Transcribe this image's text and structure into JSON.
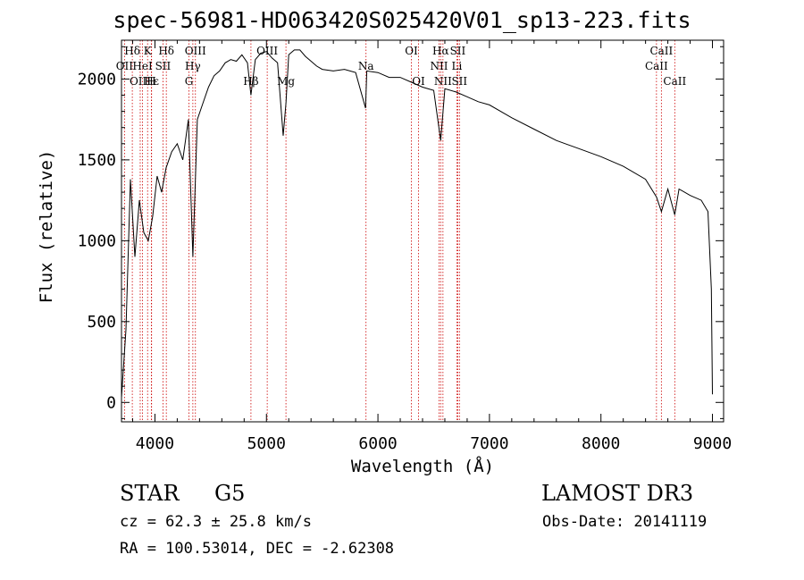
{
  "chart_data": {
    "type": "line",
    "title": "spec-56981-HD063420S025420V01_sp13-223.fits",
    "xlabel": "Wavelength (Å)",
    "ylabel": "Flux (relative)",
    "xlim": [
      3700,
      9100
    ],
    "ylim": [
      -120,
      2240
    ],
    "x_ticks": [
      4000,
      5000,
      6000,
      7000,
      8000,
      9000
    ],
    "y_ticks": [
      0,
      500,
      1000,
      1500,
      2000
    ],
    "series": [
      {
        "name": "spectrum",
        "x": [
          3700,
          3740,
          3780,
          3820,
          3860,
          3900,
          3940,
          3980,
          4020,
          4060,
          4100,
          4150,
          4200,
          4250,
          4300,
          4340,
          4380,
          4430,
          4480,
          4530,
          4580,
          4630,
          4680,
          4730,
          4780,
          4830,
          4861,
          4900,
          4950,
          5000,
          5050,
          5100,
          5150,
          5175,
          5200,
          5250,
          5300,
          5350,
          5400,
          5450,
          5500,
          5600,
          5700,
          5800,
          5889,
          5900,
          6000,
          6100,
          6200,
          6300,
          6400,
          6500,
          6563,
          6600,
          6700,
          6800,
          6900,
          7000,
          7200,
          7400,
          7600,
          7800,
          8000,
          8200,
          8400,
          8498,
          8542,
          8600,
          8662,
          8700,
          8800,
          8900,
          8960,
          8990,
          9000
        ],
        "y": [
          30,
          450,
          1380,
          900,
          1250,
          1050,
          1000,
          1150,
          1400,
          1300,
          1450,
          1550,
          1600,
          1500,
          1750,
          900,
          1750,
          1850,
          1950,
          2020,
          2050,
          2100,
          2120,
          2110,
          2150,
          2100,
          1900,
          2120,
          2160,
          2170,
          2130,
          2100,
          1650,
          1850,
          2150,
          2180,
          2180,
          2140,
          2110,
          2080,
          2060,
          2050,
          2060,
          2040,
          1820,
          2050,
          2040,
          2010,
          2010,
          1980,
          1950,
          1930,
          1620,
          1940,
          1920,
          1890,
          1860,
          1840,
          1760,
          1690,
          1620,
          1570,
          1520,
          1460,
          1380,
          1270,
          1180,
          1320,
          1160,
          1320,
          1280,
          1250,
          1180,
          700,
          50
        ]
      }
    ],
    "line_markers": [
      {
        "label": "Hδ",
        "x": 3797,
        "row": 0
      },
      {
        "label": "K",
        "x": 3934,
        "row": 0
      },
      {
        "label": "Hδ",
        "x": 4102,
        "row": 0
      },
      {
        "label": "OIII",
        "x": 4363,
        "row": 0
      },
      {
        "label": "OII",
        "x": 3727,
        "row": 1
      },
      {
        "label": "HeI",
        "x": 3889,
        "row": 1
      },
      {
        "label": "SII",
        "x": 4072,
        "row": 1
      },
      {
        "label": "Hγ",
        "x": 4340,
        "row": 1
      },
      {
        "label": "OIII",
        "x": 3868,
        "row": 2
      },
      {
        "label": "Hε",
        "x": 3970,
        "row": 2
      },
      {
        "label": "H",
        "x": 3968,
        "row": 2
      },
      {
        "label": "G",
        "x": 4305,
        "row": 2
      },
      {
        "label": "OIII",
        "x": 5007,
        "row": 0
      },
      {
        "label": "Mg",
        "x": 5175,
        "row": 2
      },
      {
        "label": "Hβ",
        "x": 4861,
        "row": 2
      },
      {
        "label": "Na",
        "x": 5893,
        "row": 1
      },
      {
        "label": "OI",
        "x": 6300,
        "row": 0
      },
      {
        "label": "OI",
        "x": 6364,
        "row": 2
      },
      {
        "label": "Hα",
        "x": 6563,
        "row": 0
      },
      {
        "label": "SII",
        "x": 6716,
        "row": 0
      },
      {
        "label": "NII",
        "x": 6548,
        "row": 1
      },
      {
        "label": "Li",
        "x": 6708,
        "row": 1
      },
      {
        "label": "NII",
        "x": 6583,
        "row": 2
      },
      {
        "label": "SII",
        "x": 6731,
        "row": 2
      },
      {
        "label": "CaII",
        "x": 8542,
        "row": 0
      },
      {
        "label": "CaII",
        "x": 8498,
        "row": 1
      },
      {
        "label": "CaII",
        "x": 8662,
        "row": 2
      }
    ],
    "grid": false
  },
  "info": {
    "class": "STAR",
    "subclass": "G5",
    "survey": "LAMOST DR3",
    "cz": "cz = 62.3 ± 25.8 km/s",
    "obs_date": "Obs-Date: 20141119",
    "coords": "RA = 100.53014, DEC =  -2.62308"
  },
  "colors": {
    "line": "#000000",
    "marker": "#cc0000"
  }
}
